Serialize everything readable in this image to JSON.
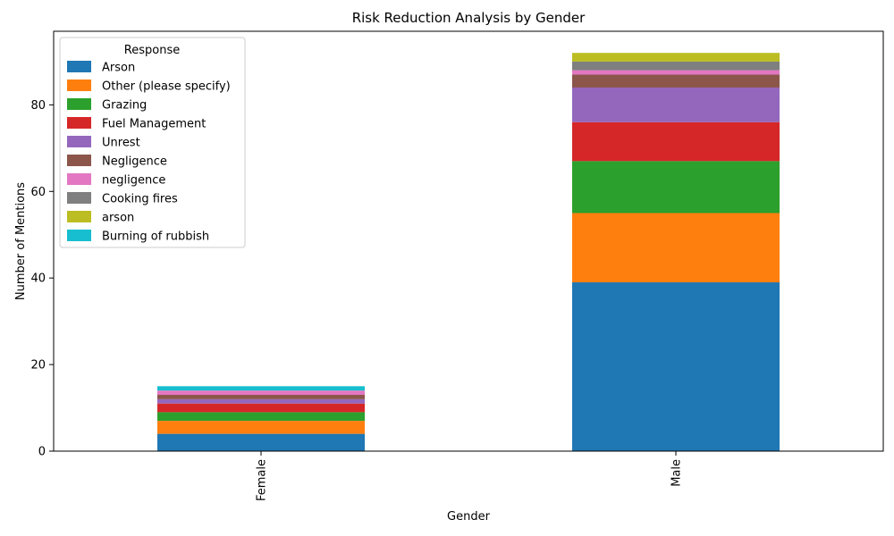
{
  "chart_data": {
    "type": "bar",
    "stacked": true,
    "title": "Risk Reduction Analysis by Gender",
    "xlabel": "Gender",
    "ylabel": "Number of Mentions",
    "categories": [
      "Female",
      "Male"
    ],
    "ylim": [
      0,
      97
    ],
    "yticks": [
      0,
      20,
      40,
      60,
      80
    ],
    "grid": false,
    "legend": {
      "title": "Response",
      "placement": "top-left"
    },
    "series": [
      {
        "name": "Arson",
        "color": "#1f77b4",
        "values": [
          4,
          39
        ]
      },
      {
        "name": "Other (please specify)",
        "color": "#ff7f0e",
        "values": [
          3,
          16
        ]
      },
      {
        "name": "Grazing",
        "color": "#2ca02c",
        "values": [
          2,
          12
        ]
      },
      {
        "name": "Fuel Management",
        "color": "#d62728",
        "values": [
          2,
          9
        ]
      },
      {
        "name": "Unrest",
        "color": "#9467bd",
        "values": [
          1,
          8
        ]
      },
      {
        "name": "Negligence",
        "color": "#8c564b",
        "values": [
          1,
          3
        ]
      },
      {
        "name": "negligence",
        "color": "#e377c2",
        "values": [
          1,
          1
        ]
      },
      {
        "name": "Cooking fires",
        "color": "#7f7f7f",
        "values": [
          0,
          2
        ]
      },
      {
        "name": "arson",
        "color": "#bcbd22",
        "values": [
          0,
          2
        ]
      },
      {
        "name": "Burning of rubbish",
        "color": "#17becf",
        "values": [
          1,
          0
        ]
      }
    ]
  }
}
